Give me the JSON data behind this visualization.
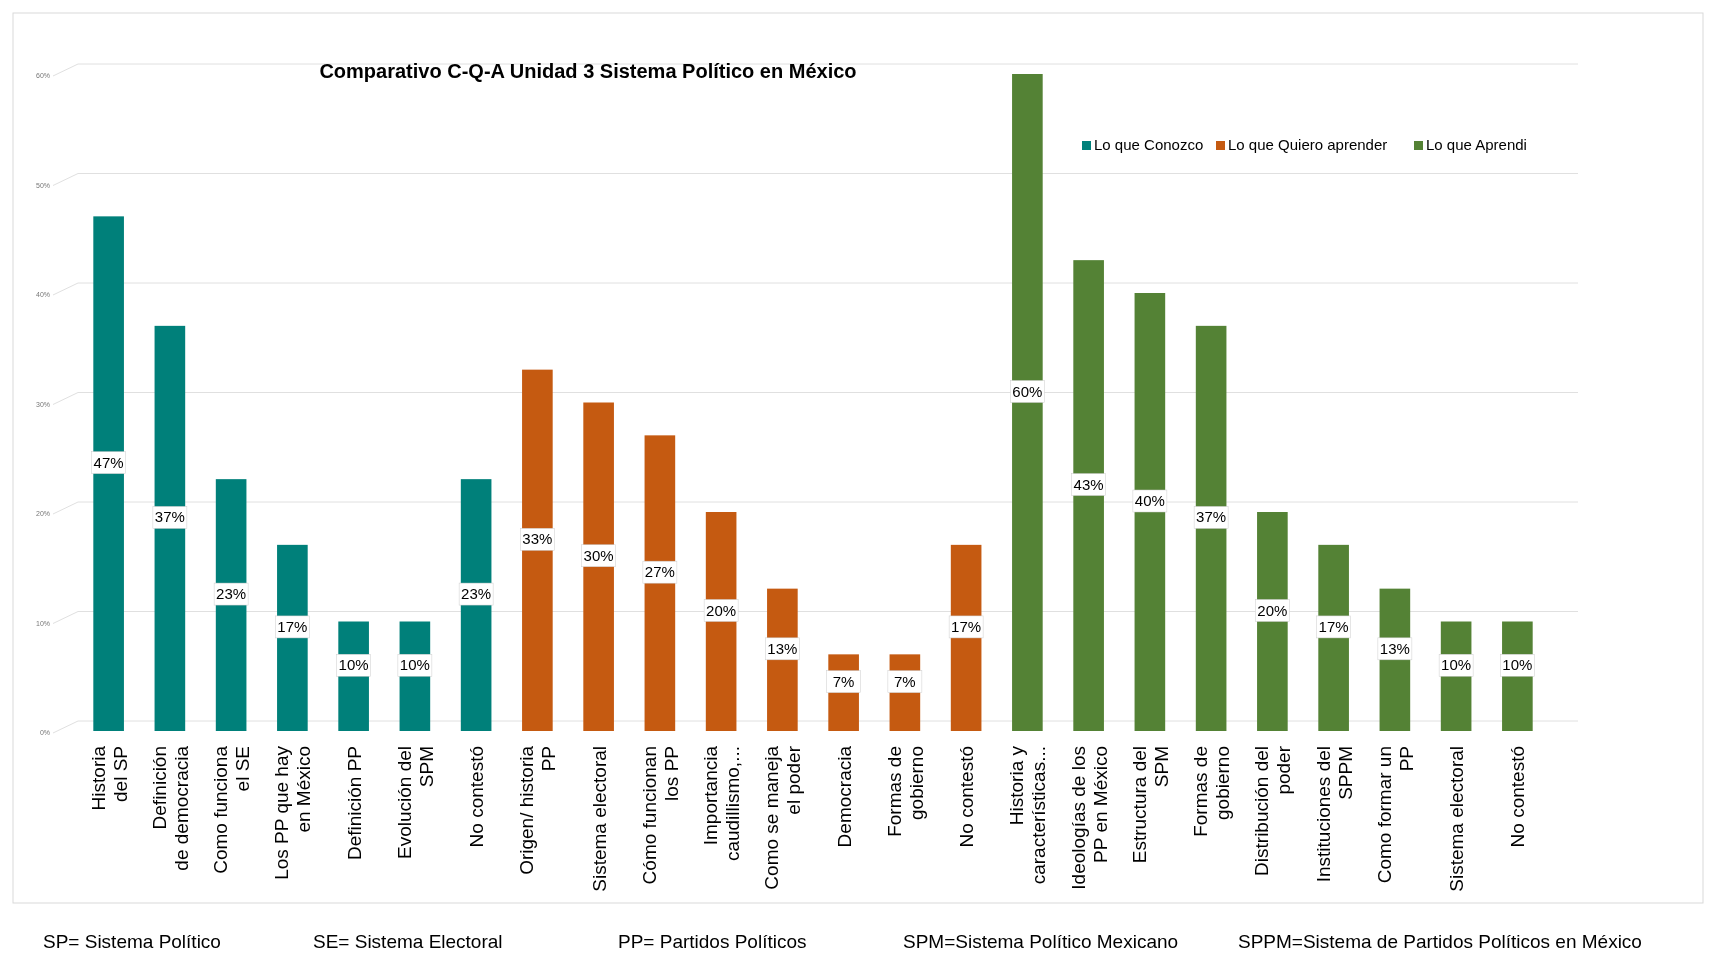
{
  "chart_data": {
    "type": "bar",
    "title": "Comparativo C-Q-A Unidad 3 Sistema Político en México",
    "categories": [
      "Historia\ndel SP",
      "Definición\nde democracia",
      "Como funciona\nel SE",
      "Los PP que hay\nen México",
      "Definición PP",
      "Evolución  del\nSPM",
      "No contestó",
      "Origen/ historia\nPP",
      "Sistema electoral",
      "Cómo funcionan\nlos PP",
      "Importancia\ncaudillismo,...",
      "Como se maneja\nel poder",
      "Democracia",
      "Formas de\ngobierno",
      "No contestó",
      "Historia y\ncaracterísticas...",
      "Ideologías de los\nPP en México",
      "Estructura del\nSPM",
      "Formas de\ngobierno",
      "Distribución del\npoder",
      "Instituciones del\nSPPM",
      "Como formar un\nPP",
      "Sistema electoral",
      "No contestó"
    ],
    "series": [
      {
        "name": "Lo que Conozco",
        "color": "#00807a",
        "values": [
          47,
          37,
          23,
          17,
          10,
          10,
          23,
          null,
          null,
          null,
          null,
          null,
          null,
          null,
          null,
          null,
          null,
          null,
          null,
          null,
          null,
          null,
          null,
          null
        ],
        "value_labels": [
          "47%",
          "37%",
          "23%",
          "17%",
          "10%",
          "10%",
          "23%",
          null,
          null,
          null,
          null,
          null,
          null,
          null,
          null,
          null,
          null,
          null,
          null,
          null,
          null,
          null,
          null,
          null
        ]
      },
      {
        "name": "Lo que Quiero aprender",
        "color": "#c55a11",
        "values": [
          null,
          null,
          null,
          null,
          null,
          null,
          null,
          33,
          30,
          27,
          20,
          13,
          7,
          7,
          17,
          null,
          null,
          null,
          null,
          null,
          null,
          null,
          null,
          null
        ],
        "value_labels": [
          null,
          null,
          null,
          null,
          null,
          null,
          null,
          "33%",
          "30%",
          "27%",
          "20%",
          "13%",
          "7%",
          "7%",
          "17%",
          null,
          null,
          null,
          null,
          null,
          null,
          null,
          null,
          null
        ]
      },
      {
        "name": "Lo que Aprendi",
        "color": "#548235",
        "values": [
          null,
          null,
          null,
          null,
          null,
          null,
          null,
          null,
          null,
          null,
          null,
          null,
          null,
          null,
          null,
          60,
          43,
          40,
          37,
          20,
          17,
          13,
          10,
          10
        ],
        "value_labels": [
          null,
          null,
          null,
          null,
          null,
          null,
          null,
          null,
          null,
          null,
          null,
          null,
          null,
          null,
          null,
          "60%",
          "43%",
          "40%",
          "37%",
          "20%",
          "17%",
          "13%",
          "10%",
          "10%"
        ]
      }
    ],
    "ylim": [
      0,
      60
    ],
    "yticks": [
      {
        "value": 0,
        "label": "0%"
      },
      {
        "value": 10,
        "label": "10%"
      },
      {
        "value": 20,
        "label": "20%"
      },
      {
        "value": 30,
        "label": "30%"
      },
      {
        "value": 40,
        "label": "40%"
      },
      {
        "value": 50,
        "label": "50%"
      },
      {
        "value": 60,
        "label": "60%"
      }
    ],
    "grid": "y",
    "legend": "top right",
    "annotations": [
      "SP= Sistema Político",
      "SE= Sistema Electoral",
      "PP= Partidos Políticos",
      "SPM=Sistema Político Mexicano",
      "SPPM=Sistema de Partidos Políticos en México"
    ]
  }
}
